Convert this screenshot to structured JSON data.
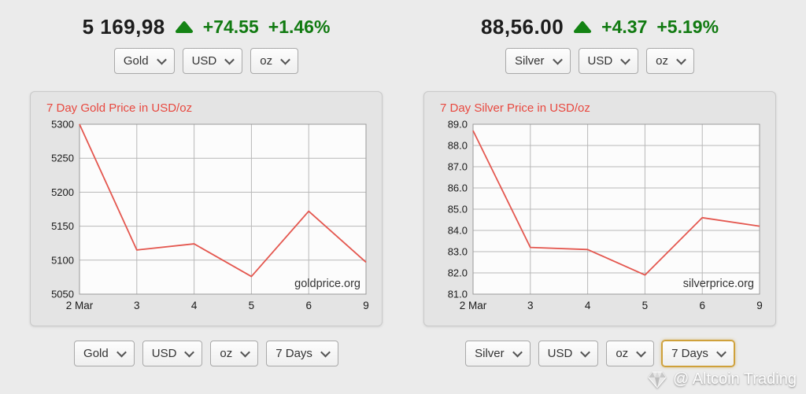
{
  "colors": {
    "positive_green": "#117a11",
    "chart_title_red": "#e8483f",
    "line_red": "#e4574f",
    "focus_border_gold": "#cfa13b"
  },
  "widgets": [
    {
      "metal": "Gold",
      "header": {
        "price": "5 169,98",
        "direction": "up",
        "change": "+74.55",
        "change_percent": "+1.46%"
      },
      "top_selects": [
        {
          "name": "metal",
          "value": "Gold"
        },
        {
          "name": "currency",
          "value": "USD"
        },
        {
          "name": "unit",
          "value": "oz"
        }
      ],
      "bottom_selects": [
        {
          "name": "metal",
          "value": "Gold"
        },
        {
          "name": "currency",
          "value": "USD"
        },
        {
          "name": "unit",
          "value": "oz"
        },
        {
          "name": "period",
          "value": "7 Days"
        }
      ]
    },
    {
      "metal": "Silver",
      "header": {
        "price": "88,56.00",
        "direction": "up",
        "change": "+4.37",
        "change_percent": "+5.19%"
      },
      "top_selects": [
        {
          "name": "metal",
          "value": "Silver"
        },
        {
          "name": "currency",
          "value": "USD"
        },
        {
          "name": "unit",
          "value": "oz"
        }
      ],
      "bottom_selects": [
        {
          "name": "metal",
          "value": "Silver"
        },
        {
          "name": "currency",
          "value": "USD"
        },
        {
          "name": "unit",
          "value": "oz"
        },
        {
          "name": "period",
          "value": "7 Days",
          "focused": true
        }
      ]
    }
  ],
  "chart_data": [
    {
      "type": "line",
      "title": "7 Day Gold Price in USD/oz",
      "categories": [
        "2 Mar",
        "3",
        "4",
        "5",
        "6",
        "9"
      ],
      "values": [
        5300,
        5115,
        5124,
        5076,
        5172,
        5097
      ],
      "ylim": [
        5050,
        5300
      ],
      "yticks": [
        5300,
        5250,
        5200,
        5150,
        5100,
        5050
      ],
      "ytick_labels": [
        "5300",
        "5250",
        "5200",
        "5150",
        "5100",
        "5050"
      ],
      "xlabel": "",
      "ylabel": "",
      "grid": true,
      "legend": "none",
      "line_color": "#e4574f",
      "watermark": "goldprice.org"
    },
    {
      "type": "line",
      "title": "7 Day Silver Price in USD/oz",
      "categories": [
        "2 Mar",
        "3",
        "4",
        "5",
        "6",
        "9"
      ],
      "values": [
        88.7,
        83.2,
        83.1,
        81.9,
        84.6,
        84.2
      ],
      "ylim": [
        81.0,
        89.0
      ],
      "yticks": [
        89.0,
        88.0,
        87.0,
        86.0,
        85.0,
        84.0,
        83.0,
        82.0,
        81.0
      ],
      "ytick_labels": [
        "89.0",
        "88.0",
        "87.0",
        "86.0",
        "85.0",
        "84.0",
        "83.0",
        "82.0",
        "81.0"
      ],
      "xlabel": "",
      "ylabel": "",
      "grid": true,
      "legend": "none",
      "line_color": "#e4574f",
      "watermark": "silverprice.org"
    }
  ],
  "footer": {
    "watermark": "@ Altcoin Trading"
  }
}
